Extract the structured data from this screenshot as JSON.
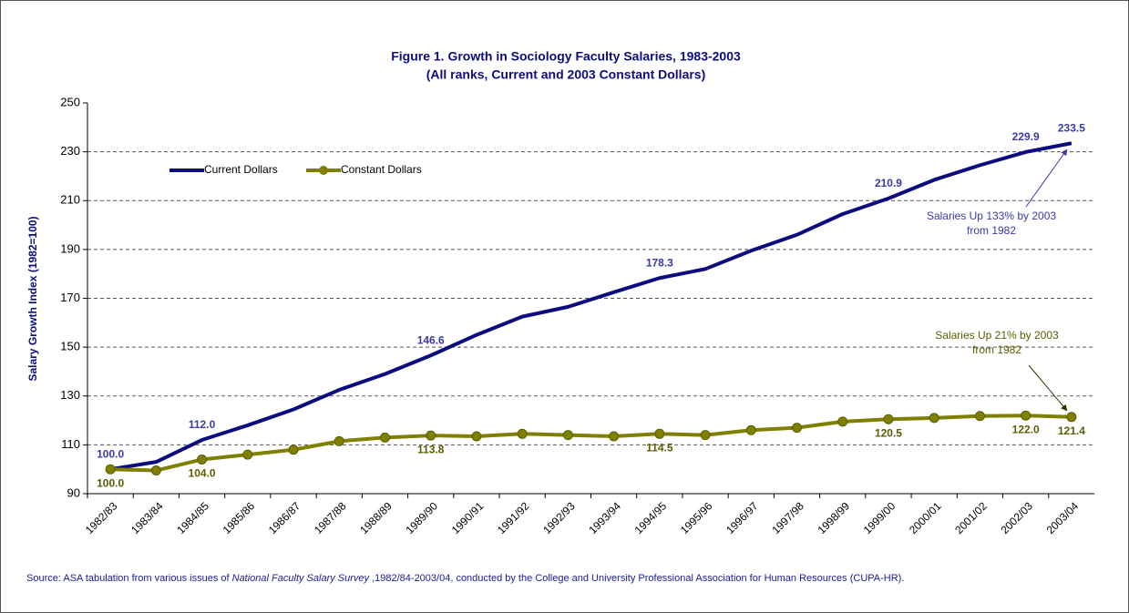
{
  "chart_data": {
    "type": "line",
    "title": "Figure 1.  Growth in Sociology Faculty Salaries, 1983-2003",
    "subtitle": "(All ranks, Current and 2003 Constant Dollars)",
    "y_label": "Salary Growth Index (1982=100)",
    "categories": [
      "1982/83",
      "1983/84",
      "1984/85",
      "1985/86",
      "1986/87",
      "1987/88",
      "1988/89",
      "1989/90",
      "1990/91",
      "1991/92",
      "1992/93",
      "1993/94",
      "1994/95",
      "1995/96",
      "1996/97",
      "1997/98",
      "1998/99",
      "1999/00",
      "2000/01",
      "2001/02",
      "2002/03",
      "2003/04"
    ],
    "series": [
      {
        "name": "Current Dollars",
        "color": "#0c0c80",
        "label_color": "#3a3aa8",
        "marker": false,
        "values": [
          100.0,
          103,
          112.0,
          118,
          124.5,
          132.5,
          139,
          146.6,
          155,
          162.5,
          166.5,
          172.5,
          178.3,
          182,
          189.5,
          196,
          204.5,
          210.9,
          218.5,
          224.5,
          229.9,
          233.5
        ],
        "value_labels": [
          "100.0",
          null,
          "112.0",
          null,
          null,
          null,
          null,
          "146.6",
          null,
          null,
          null,
          null,
          "178.3",
          null,
          null,
          null,
          null,
          "210.9",
          null,
          null,
          "229.9",
          "233.5"
        ]
      },
      {
        "name": "Constant Dollars",
        "color": "#808000",
        "label_color": "#5c5c00",
        "marker": true,
        "values": [
          100.0,
          99.5,
          104.0,
          106,
          108,
          111.5,
          113,
          113.8,
          113.5,
          114.5,
          114,
          113.5,
          114.5,
          114,
          116,
          117,
          119.5,
          120.5,
          121,
          121.8,
          122.0,
          121.4
        ],
        "value_labels": [
          "100.0",
          null,
          "104.0",
          null,
          null,
          null,
          null,
          "113.8",
          null,
          null,
          null,
          null,
          "114.5",
          null,
          null,
          null,
          null,
          "120.5",
          null,
          null,
          "122.0",
          "121.4"
        ]
      }
    ],
    "ylim": [
      90,
      250
    ],
    "yticks": [
      90,
      110,
      130,
      150,
      170,
      190,
      210,
      230,
      250
    ],
    "grid": true,
    "legend": "top-left",
    "annotations": [
      {
        "lines": [
          "Salaries Up 133% by 2003",
          "from 1982"
        ],
        "series": 0,
        "color": "#3a3aa8"
      },
      {
        "lines": [
          "Salaries Up 21% by 2003",
          "from 1982"
        ],
        "series": 1,
        "color": "#5c5c00"
      }
    ],
    "source": [
      "Source: ASA tabulation from various issues of ",
      "National Faculty Salary Survey",
      " ,1982/84-2003/04, conducted by the College and University Professional Association for Human Resources (CUPA-HR)."
    ]
  }
}
